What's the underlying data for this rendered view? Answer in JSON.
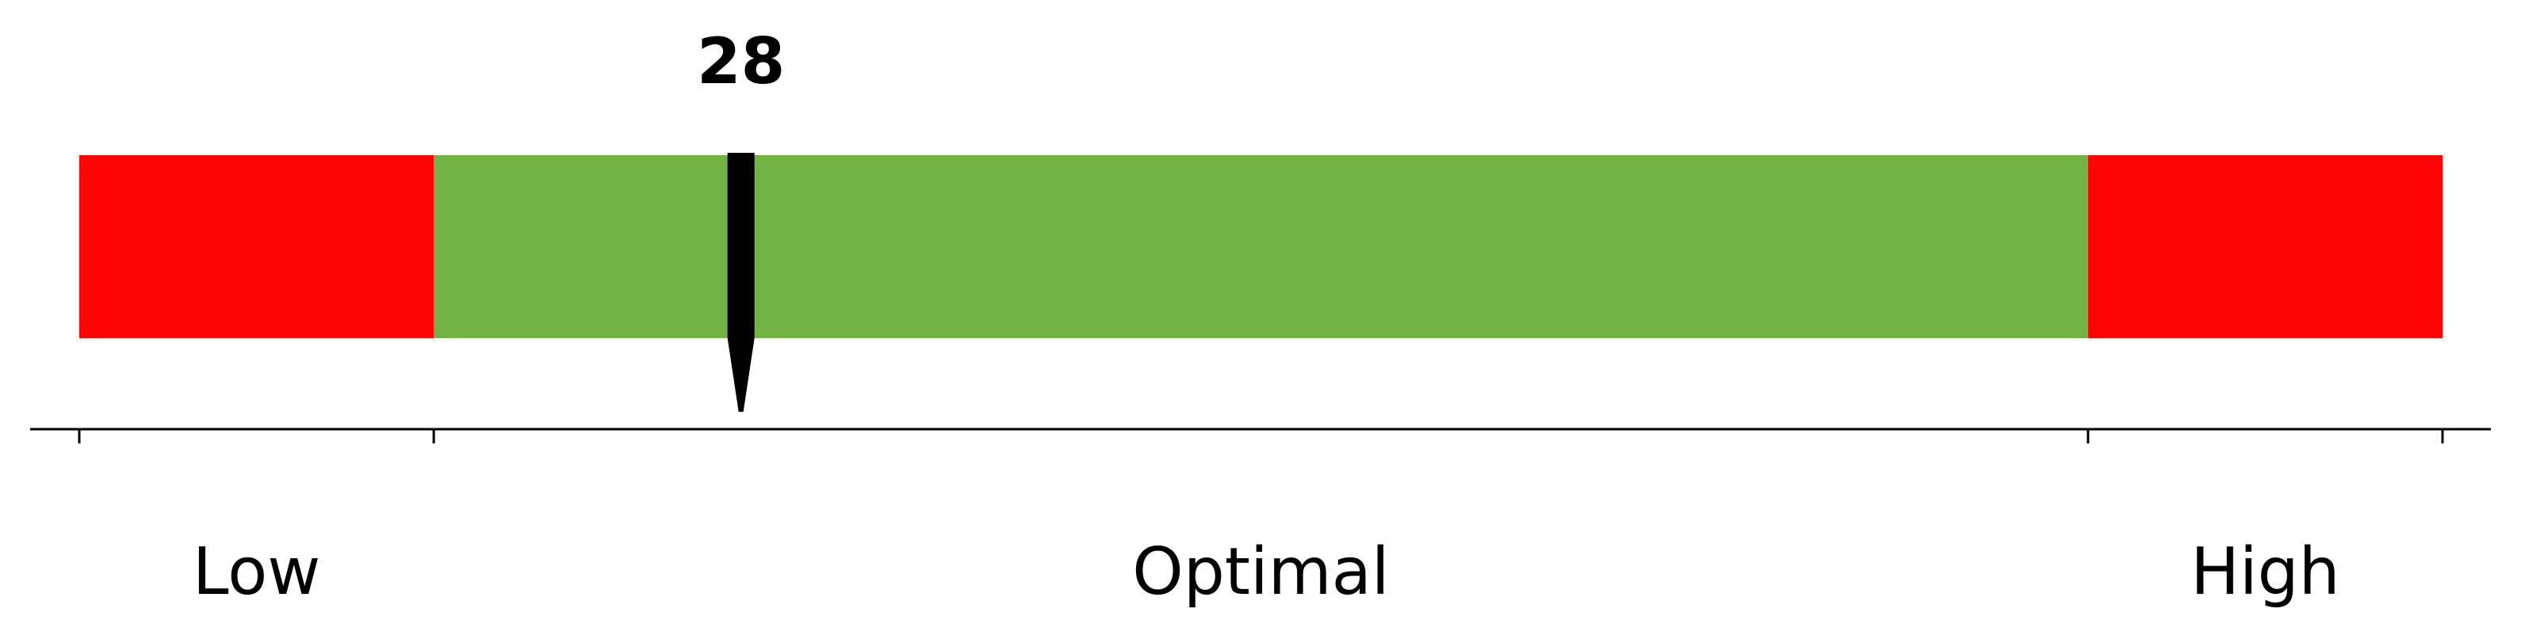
{
  "chart_data": {
    "type": "bar",
    "orientation": "horizontal",
    "range": [
      0,
      100
    ],
    "value": 28,
    "value_label": "28",
    "zones": [
      {
        "label": "Low",
        "start": 0,
        "end": 15,
        "color": "#ff0606"
      },
      {
        "label": "Optimal",
        "start": 15,
        "end": 85,
        "color": "#72b245"
      },
      {
        "label": "High",
        "start": 85,
        "end": 100,
        "color": "#ff0606"
      }
    ],
    "ticks": [
      0,
      15,
      85,
      100
    ],
    "pointer_color": "#000000",
    "axis_color": "#000000",
    "grid": false,
    "legend": "none"
  }
}
